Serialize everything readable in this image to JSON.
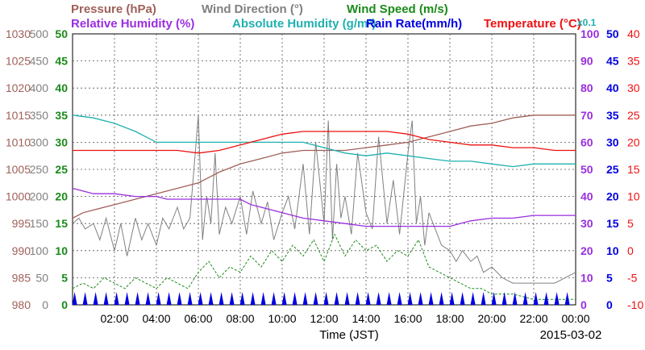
{
  "chart_data": {
    "type": "line",
    "date": "2015-03-02",
    "xlabel": "Time (JST)",
    "x_ticks": [
      "02:00",
      "04:00",
      "06:00",
      "08:00",
      "10:00",
      "12:00",
      "14:00",
      "16:00",
      "18:00",
      "20:00",
      "22:00",
      "00:00"
    ],
    "x_range_hours": [
      0,
      24
    ],
    "grid": true,
    "legend": {
      "row1": [
        {
          "key": "pressure",
          "text": "Pressure (hPa)",
          "color": "#a0605a"
        },
        {
          "key": "wind_dir",
          "text": "Wind Direction (°)",
          "color": "#808080"
        },
        {
          "key": "wind_speed",
          "text": "Wind Speed (m/s)",
          "color": "#1a8a1a"
        }
      ],
      "row2": [
        {
          "key": "rel_hum",
          "text": "Relative Humidity (%)",
          "color": "#9a2ee0"
        },
        {
          "key": "abs_hum",
          "text": "Absolute Humidity (g/m³)",
          "color": "#20b0b0"
        },
        {
          "key": "rain",
          "text": "Rain Rate(mm/h)",
          "color": "#0000e0"
        },
        {
          "key": "temp",
          "text": "Temperature (°C)",
          "color": "#ee1111"
        }
      ],
      "abs_hum_scale_note": "x0.1"
    },
    "axes": {
      "pressure": {
        "ticks": [
          "1030",
          "1025",
          "1020",
          "1015",
          "1010",
          "1005",
          "1000",
          "995",
          "990",
          "985",
          "980"
        ],
        "range": [
          980,
          1030
        ],
        "color": "#a0605a"
      },
      "wind_dir": {
        "ticks": [
          "500",
          "450",
          "400",
          "350",
          "300",
          "250",
          "200",
          "150",
          "100",
          "50",
          "0"
        ],
        "range": [
          0,
          500
        ],
        "color": "#808080"
      },
      "wind_speed": {
        "ticks": [
          "50",
          "45",
          "40",
          "35",
          "30",
          "25",
          "20",
          "15",
          "10",
          "5",
          "0"
        ],
        "range": [
          0,
          50
        ],
        "color": "#1a8a1a"
      },
      "rel_hum": {
        "ticks": [
          "100",
          "90",
          "80",
          "70",
          "60",
          "50",
          "40",
          "30",
          "20",
          "10",
          "0"
        ],
        "range": [
          0,
          100
        ],
        "color": "#9a2ee0"
      },
      "rain": {
        "ticks": [
          "50",
          "45",
          "40",
          "35",
          "30",
          "25",
          "20",
          "15",
          "10",
          "5",
          "0"
        ],
        "range": [
          0,
          50
        ],
        "color": "#0000e0"
      },
      "temp": {
        "ticks": [
          "40",
          "35",
          "30",
          "25",
          "20",
          "15",
          "10",
          "5",
          "0",
          "-5",
          "-10"
        ],
        "range": [
          -10,
          40
        ],
        "color": "#ee1111"
      }
    },
    "series": {
      "pressure": {
        "x": [
          0,
          0.5,
          1,
          2,
          3,
          4,
          5,
          6,
          7,
          8,
          9,
          10,
          11,
          12,
          13,
          14,
          15,
          16,
          17,
          18,
          19,
          20,
          21,
          22,
          23,
          24
        ],
        "y": [
          996,
          997,
          997.5,
          998.5,
          999.5,
          1000.5,
          1001.5,
          1002.5,
          1004.5,
          1006,
          1007,
          1008,
          1008.5,
          1008.5,
          1008.5,
          1009,
          1009.5,
          1010,
          1011,
          1012,
          1013,
          1013.5,
          1014.5,
          1015,
          1015,
          1015
        ]
      },
      "rel_hum": {
        "x": [
          0,
          0.5,
          1,
          2,
          3,
          4,
          4.5,
          5,
          6,
          7,
          8,
          8.5,
          9,
          10,
          11,
          12,
          13,
          14,
          15,
          16,
          17,
          18,
          19,
          20,
          21,
          22,
          23,
          24
        ],
        "y": [
          43,
          42,
          41,
          41,
          40,
          40,
          39,
          39,
          39,
          39,
          39,
          37,
          36,
          34,
          32,
          31,
          30,
          29,
          29,
          29,
          29,
          29,
          31,
          32,
          32,
          33,
          33,
          33
        ]
      },
      "abs_hum": {
        "x": [
          0,
          1,
          2,
          3,
          4,
          5,
          6,
          7,
          8,
          9,
          10,
          11,
          12,
          13,
          14,
          15,
          16,
          17,
          18,
          19,
          20,
          21,
          22,
          23,
          24
        ],
        "y": [
          7.0,
          6.9,
          6.7,
          6.4,
          6.0,
          6.0,
          6.0,
          6.0,
          6.0,
          6.0,
          6.0,
          6.0,
          5.8,
          5.6,
          5.5,
          5.6,
          5.5,
          5.4,
          5.3,
          5.3,
          5.2,
          5.1,
          5.2,
          5.2,
          5.2
        ]
      },
      "temp": {
        "x": [
          0,
          1,
          2,
          3,
          4,
          5,
          6,
          7,
          8,
          9,
          10,
          11,
          12,
          13,
          14,
          15,
          16,
          17,
          18,
          19,
          20,
          21,
          22,
          23,
          24
        ],
        "y": [
          18.5,
          18.5,
          18.5,
          18.5,
          18.5,
          18.5,
          18,
          18.5,
          19.5,
          20.5,
          21.5,
          22,
          22,
          22,
          22,
          22,
          21.5,
          20.5,
          20,
          19.5,
          19.5,
          19,
          19,
          18.5,
          18.5
        ]
      },
      "wind_dir": {
        "x": [
          0,
          0.3,
          0.6,
          1,
          1.3,
          1.6,
          2,
          2.3,
          2.6,
          3,
          3.3,
          3.6,
          4,
          4.3,
          4.6,
          5,
          5.3,
          5.6,
          6,
          6.2,
          6.4,
          6.6,
          6.8,
          7,
          7.3,
          7.6,
          8,
          8.3,
          8.6,
          9,
          9.3,
          9.6,
          10,
          10.3,
          10.6,
          11,
          11.3,
          11.6,
          12,
          12.2,
          12.4,
          12.6,
          12.8,
          13,
          13.3,
          13.6,
          14,
          14.3,
          14.6,
          15,
          15.3,
          15.6,
          16,
          16.2,
          16.4,
          16.6,
          16.8,
          17,
          17.3,
          17.6,
          18,
          18.3,
          18.6,
          19,
          19.3,
          19.6,
          20,
          20.5,
          21,
          21.5,
          22,
          22.5,
          23,
          23.5,
          24
        ],
        "y": [
          150,
          160,
          140,
          150,
          120,
          160,
          100,
          150,
          90,
          160,
          120,
          150,
          110,
          160,
          140,
          180,
          140,
          160,
          350,
          120,
          200,
          150,
          280,
          130,
          180,
          150,
          200,
          130,
          210,
          150,
          190,
          120,
          170,
          200,
          140,
          260,
          130,
          300,
          150,
          340,
          120,
          260,
          160,
          200,
          130,
          280,
          170,
          140,
          310,
          150,
          230,
          130,
          280,
          340,
          150,
          200,
          110,
          170,
          140,
          110,
          100,
          80,
          100,
          80,
          90,
          60,
          70,
          50,
          40,
          40,
          40,
          40,
          40,
          50,
          60
        ]
      },
      "wind_speed": {
        "x": [
          0,
          0.5,
          1,
          1.5,
          2,
          2.5,
          3,
          3.5,
          4,
          4.5,
          5,
          5.5,
          6,
          6.5,
          7,
          7.5,
          8,
          8.5,
          9,
          9.5,
          10,
          10.5,
          11,
          11.5,
          12,
          12.5,
          13,
          13.5,
          14,
          14.5,
          15,
          15.5,
          16,
          16.5,
          17,
          17.5,
          18,
          18.5,
          19,
          19.5,
          20,
          21,
          22,
          23,
          24
        ],
        "y": [
          3,
          4,
          3,
          5,
          4,
          3,
          5,
          4,
          3,
          5,
          4,
          3,
          6,
          8,
          5,
          7,
          6,
          9,
          7,
          10,
          8,
          11,
          9,
          12,
          8,
          13,
          9,
          12,
          10,
          11,
          8,
          10,
          9,
          12,
          7,
          6,
          5,
          4,
          3,
          3,
          2,
          2,
          1,
          1,
          1
        ]
      },
      "rain": {
        "x": [
          0,
          24
        ],
        "y": [
          0,
          0
        ]
      }
    }
  }
}
